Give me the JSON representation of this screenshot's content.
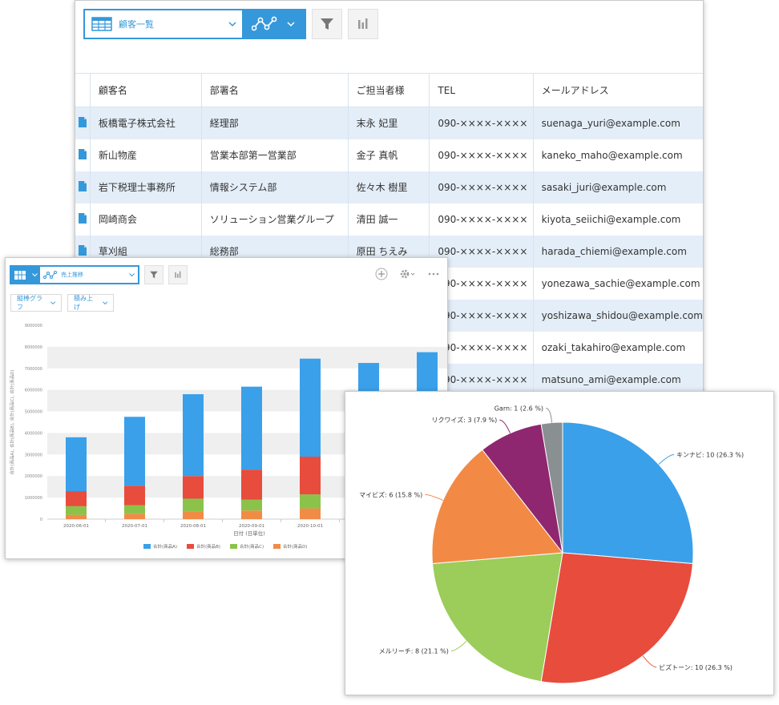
{
  "table_view": {
    "view_name": "顧客一覧",
    "columns": [
      "顧客名",
      "部署名",
      "ご担当者様",
      "TEL",
      "メールアドレス"
    ],
    "rows": [
      [
        "板橋電子株式会社",
        "経理部",
        "末永 妃里",
        "090-××××-××××",
        "suenaga_yuri@example.com"
      ],
      [
        "新山物産",
        "営業本部第一営業部",
        "金子 真帆",
        "090-××××-××××",
        "kaneko_maho@example.com"
      ],
      [
        "岩下税理士事務所",
        "情報システム部",
        "佐々木 樹里",
        "090-××××-××××",
        "sasaki_juri@example.com"
      ],
      [
        "岡崎商会",
        "ソリューション営業グループ",
        "清田 誠一",
        "090-××××-××××",
        "kiyota_seiichi@example.com"
      ],
      [
        "草刈組",
        "総務部",
        "原田 ちえみ",
        "090-××××-××××",
        "harada_chiemi@example.com"
      ],
      [
        "",
        "",
        "",
        "090-××××-××××",
        "yonezawa_sachie@example.com"
      ],
      [
        "",
        "",
        "",
        "090-××××-××××",
        "yoshizawa_shidou@example.com"
      ],
      [
        "",
        "",
        "",
        "090-××××-××××",
        "ozaki_takahiro@example.com"
      ],
      [
        "",
        "",
        "",
        "090-××××-××××",
        "matsuno_ami@example.com"
      ]
    ]
  },
  "bar_view": {
    "view_name": "売上推移",
    "chart_type_label": "縦棒グラフ",
    "stack_label": "積み上げ",
    "icons": [
      "plus-icon",
      "gear-icon",
      "more-icon"
    ]
  },
  "chart_data": [
    {
      "type": "bar",
      "stacked": true,
      "categories": [
        "2020-06-01",
        "2020-07-01",
        "2020-08-01",
        "2020-09-01",
        "2020-10-01",
        "",
        ""
      ],
      "series": [
        {
          "name": "合計(商品A)",
          "color": "#3aa0ea",
          "values": [
            2500000,
            3200000,
            3800000,
            3850000,
            4550000,
            4450000,
            4700000
          ]
        },
        {
          "name": "合計(商品B)",
          "color": "#e74c3c",
          "values": [
            700000,
            900000,
            1050000,
            1400000,
            1750000,
            1650000,
            1800000
          ]
        },
        {
          "name": "合計(商品C)",
          "color": "#8bc34a",
          "values": [
            400000,
            400000,
            600000,
            500000,
            650000,
            650000,
            700000
          ]
        },
        {
          "name": "合計(商品D)",
          "color": "#f08c46",
          "values": [
            200000,
            250000,
            350000,
            400000,
            500000,
            500000,
            550000
          ]
        }
      ],
      "y_ticks": [
        "0",
        "1000000",
        "2000000",
        "3000000",
        "4000000",
        "5000000",
        "6000000",
        "7000000",
        "8000000",
        "9000000"
      ],
      "ylim": [
        0,
        9000000
      ],
      "xlabel": "日付 (日単位)",
      "ylabel": "合計(商品A), 合計(商品B), 合計(商品C), 合計(商品D)",
      "legend": "bottom"
    },
    {
      "type": "pie",
      "slices": [
        {
          "name": "キンナビ",
          "value": 10,
          "percent": 26.3,
          "label": "キンナビ: 10 (26.3 %)",
          "color": "#3aa0ea"
        },
        {
          "name": "ビズトーン",
          "value": 10,
          "percent": 26.3,
          "label": "ビズトーン: 10 (26.3 %)",
          "color": "#e74c3c"
        },
        {
          "name": "メルリーチ",
          "value": 8,
          "percent": 21.1,
          "label": "メルリーチ: 8 (21.1 %)",
          "color": "#9ccc5a"
        },
        {
          "name": "マイビズ",
          "value": 6,
          "percent": 15.8,
          "label": "マイビズ: 6 (15.8 %)",
          "color": "#f28a45"
        },
        {
          "name": "リクワイズ",
          "value": 3,
          "percent": 7.9,
          "label": "リクワイズ: 3 (7.9 %)",
          "color": "#8e2770"
        },
        {
          "name": "Garn",
          "value": 1,
          "percent": 2.6,
          "label": "Garn: 1 (2.6 %)",
          "color": "#8a8f92"
        }
      ]
    }
  ]
}
